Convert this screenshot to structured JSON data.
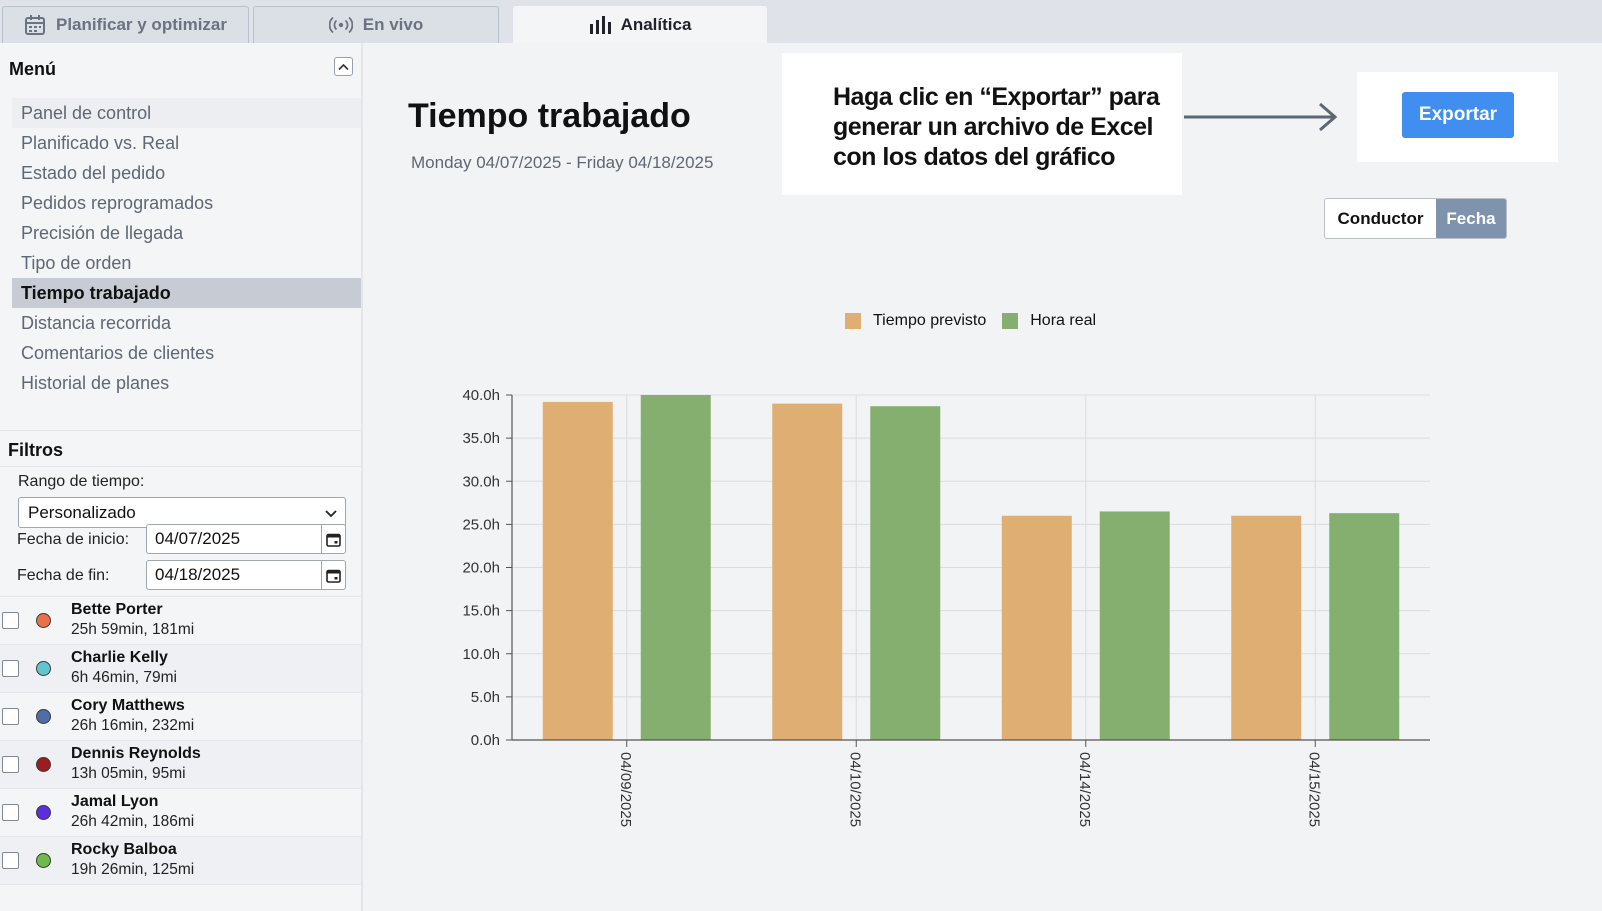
{
  "tabs": [
    {
      "label": "Planificar y optimizar",
      "icon": "calendar-icon"
    },
    {
      "label": "En vivo",
      "icon": "broadcast-icon"
    },
    {
      "label": "Analítica",
      "icon": "bar-chart-icon"
    }
  ],
  "sidebar": {
    "menu_title": "Menú",
    "items": [
      "Panel de control",
      "Planificado vs. Real",
      "Estado del pedido",
      "Pedidos reprogramados",
      "Precisión de llegada",
      "Tipo de orden",
      "Tiempo trabajado",
      "Distancia recorrida",
      "Comentarios de clientes",
      "Historial de planes"
    ],
    "active_item": "Tiempo trabajado"
  },
  "filters": {
    "title": "Filtros",
    "range_label": "Rango de tiempo:",
    "range_value": "Personalizado",
    "start_label": "Fecha de inicio:",
    "start_value": "04/07/2025",
    "end_label": "Fecha de fin:",
    "end_value": "04/18/2025"
  },
  "drivers": [
    {
      "name": "Bette Porter",
      "stats": "25h 59min, 181mi",
      "color": "#e8714a"
    },
    {
      "name": "Charlie Kelly",
      "stats": "6h 46min, 79mi",
      "color": "#5fc6d0"
    },
    {
      "name": "Cory Matthews",
      "stats": "26h 16min, 232mi",
      "color": "#4f6ea8"
    },
    {
      "name": "Dennis Reynolds",
      "stats": "13h 05min, 95mi",
      "color": "#9b1d20"
    },
    {
      "name": "Jamal Lyon",
      "stats": "26h 42min, 186mi",
      "color": "#5b2ee0"
    },
    {
      "name": "Rocky Balboa",
      "stats": "19h 26min, 125mi",
      "color": "#6dbb4a"
    }
  ],
  "main": {
    "title": "Tiempo trabajado",
    "date_range": "Monday 04/07/2025 - Friday 04/18/2025",
    "callout": "Haga clic en “Exportar” para generar un archivo de Excel con los datos del gráfico",
    "export_label": "Exportar",
    "toggle": {
      "driver_label": "Conductor",
      "date_label": "Fecha",
      "selected": "Fecha"
    }
  },
  "chart_data": {
    "type": "bar",
    "categories": [
      "04/09/2025",
      "04/10/2025",
      "04/14/2025",
      "04/15/2025"
    ],
    "series": [
      {
        "name": "Tiempo previsto",
        "color": "#deae72",
        "values": [
          39.2,
          39.0,
          26.0,
          26.0
        ]
      },
      {
        "name": "Hora real",
        "color": "#85af6f",
        "values": [
          40.0,
          38.7,
          26.5,
          26.3
        ]
      }
    ],
    "ylim": [
      0,
      40
    ],
    "yticks": [
      "0.0h",
      "5.0h",
      "10.0h",
      "15.0h",
      "20.0h",
      "25.0h",
      "30.0h",
      "35.0h",
      "40.0h"
    ],
    "grid": true,
    "legend_position": "top-center"
  }
}
